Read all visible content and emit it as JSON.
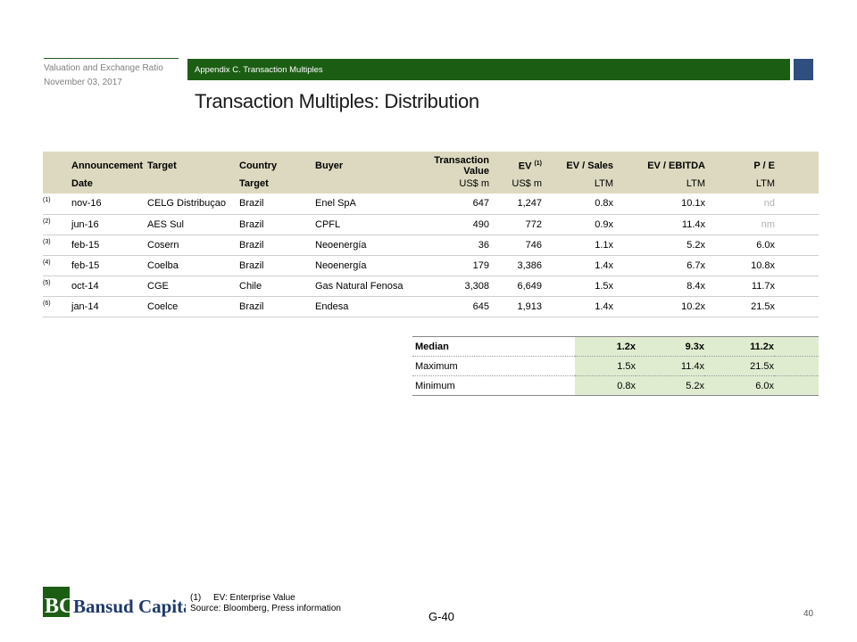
{
  "header": {
    "doc_title": "Valuation and Exchange Ratio",
    "doc_date": "November 03, 2017",
    "section": "Appendix C. Transaction Multiples",
    "page_title": "Transaction Multiples: Distribution"
  },
  "table": {
    "headers": {
      "announcement": "Announcement",
      "target": "Target",
      "country": "Country",
      "buyer": "Buyer",
      "transaction_value": "Transaction Value",
      "ev": "EV",
      "ev_note": "(1)",
      "ev_sales": "EV / Sales",
      "ev_ebitda": "EV / EBITDA",
      "pe": "P / E"
    },
    "subheaders": {
      "date": "Date",
      "country_target": "Target",
      "tv_unit": "US$ m",
      "ev_unit": "US$ m",
      "sales_unit": "LTM",
      "ebitda_unit": "LTM",
      "pe_unit": "LTM"
    },
    "rows": [
      {
        "note": "(1)",
        "date": "nov-16",
        "target": "CELG Distribuçao",
        "country": "Brazil",
        "buyer": "Enel SpA",
        "tv": "647",
        "ev": "1,247",
        "ev_sales": "0.8x",
        "ev_ebitda": "10.1x",
        "pe": "nd"
      },
      {
        "note": "(2)",
        "date": "jun-16",
        "target": "AES Sul",
        "country": "Brazil",
        "buyer": "CPFL",
        "tv": "490",
        "ev": "772",
        "ev_sales": "0.9x",
        "ev_ebitda": "11.4x",
        "pe": "nm"
      },
      {
        "note": "(3)",
        "date": "feb-15",
        "target": "Cosern",
        "country": "Brazil",
        "buyer": "Neoenergía",
        "tv": "36",
        "ev": "746",
        "ev_sales": "1.1x",
        "ev_ebitda": "5.2x",
        "pe": "6.0x"
      },
      {
        "note": "(4)",
        "date": "feb-15",
        "target": "Coelba",
        "country": "Brazil",
        "buyer": "Neoenergía",
        "tv": "179",
        "ev": "3,386",
        "ev_sales": "1.4x",
        "ev_ebitda": "6.7x",
        "pe": "10.8x"
      },
      {
        "note": "(5)",
        "date": "oct-14",
        "target": "CGE",
        "country": "Chile",
        "buyer": "Gas Natural Fenosa",
        "tv": "3,308",
        "ev": "6,649",
        "ev_sales": "1.5x",
        "ev_ebitda": "8.4x",
        "pe": "11.7x"
      },
      {
        "note": "(6)",
        "date": "jan-14",
        "target": "Coelce",
        "country": "Brazil",
        "buyer": "Endesa",
        "tv": "645",
        "ev": "1,913",
        "ev_sales": "1.4x",
        "ev_ebitda": "10.2x",
        "pe": "21.5x"
      }
    ]
  },
  "summary": {
    "rows": [
      {
        "label": "Median",
        "ev_sales": "1.2x",
        "ev_ebitda": "9.3x",
        "pe": "11.2x"
      },
      {
        "label": "Maximum",
        "ev_sales": "1.5x",
        "ev_ebitda": "11.4x",
        "pe": "21.5x"
      },
      {
        "label": "Minimum",
        "ev_sales": "0.8x",
        "ev_ebitda": "5.2x",
        "pe": "6.0x"
      }
    ]
  },
  "footer": {
    "logo_text": "Bansud Capital",
    "logo_mark": "BC",
    "footnote_num": "(1)",
    "footnote_text": "EV: Enterprise Value",
    "source": "Source: Bloomberg,  Press information",
    "page_code": "G-40",
    "page_number": "40"
  },
  "colors": {
    "section_bar": "#1b5e13",
    "header_fill": "#dcd9c0",
    "summary_fill": "#dfecd0",
    "accent_square": "#2f4f7f"
  }
}
